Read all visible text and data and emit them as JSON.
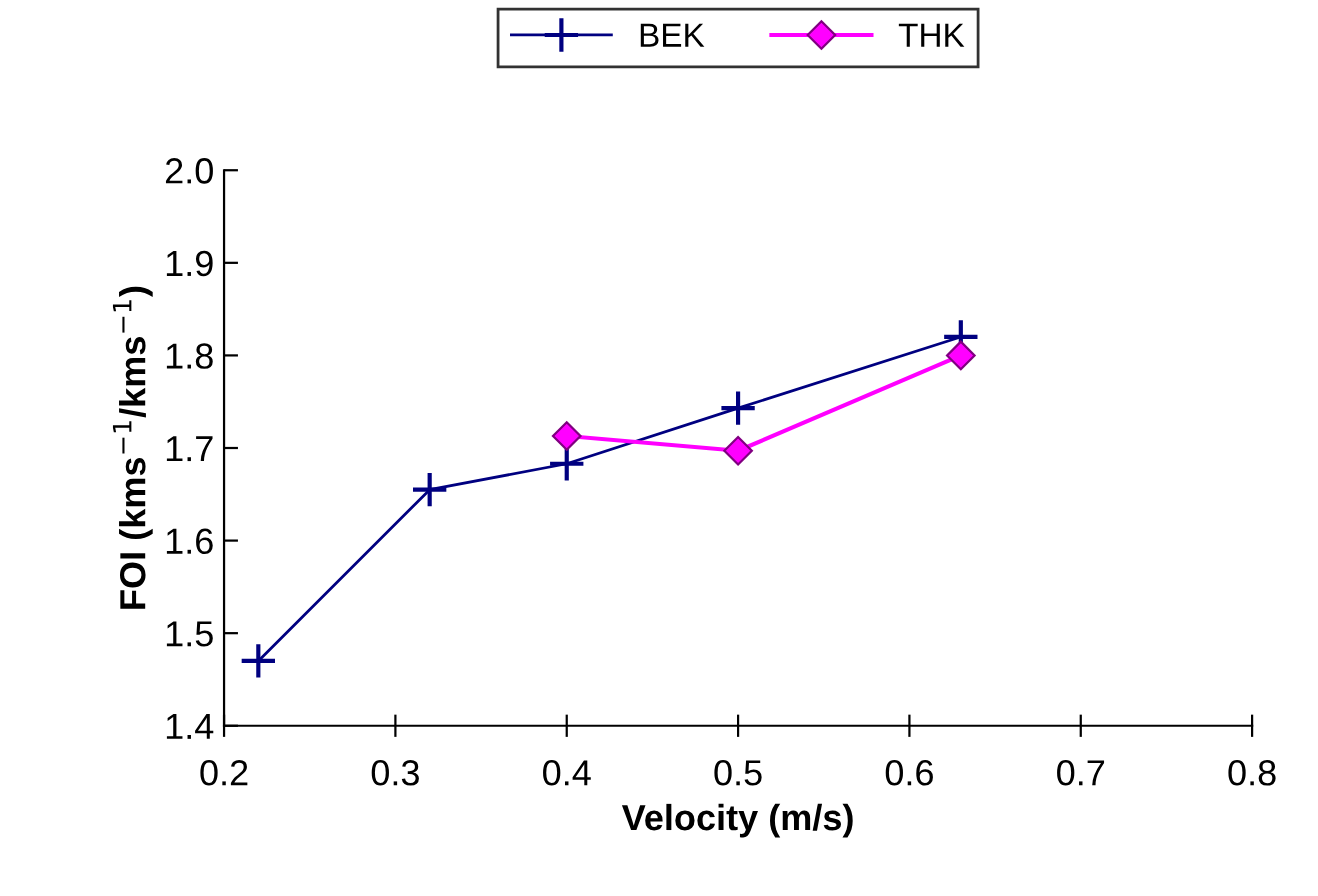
{
  "chart_data": {
    "type": "line",
    "xlabel": "Velocity (m/s)",
    "ylabel": "FOI (kms$^{−1}$/kms$^{−1}$)",
    "series": [
      {
        "name": "BEK",
        "color": "#000080",
        "marker": "cross",
        "x": [
          0.22,
          0.32,
          0.4,
          0.5,
          0.63
        ],
        "values": [
          1.47,
          1.655,
          1.683,
          1.743,
          1.82
        ]
      },
      {
        "name": "THK",
        "color": "#ff00ff",
        "marker": "diamond",
        "x": [
          0.4,
          0.5,
          0.63
        ],
        "values": [
          1.713,
          1.697,
          1.8
        ]
      }
    ],
    "xlim": [
      0.2,
      0.8
    ],
    "xticks": [
      {
        "value": 0.2,
        "label": "0.2"
      },
      {
        "value": 0.3,
        "label": "0.3"
      },
      {
        "value": 0.4,
        "label": "0.4"
      },
      {
        "value": 0.5,
        "label": "0.5"
      },
      {
        "value": 0.6,
        "label": "0.6"
      },
      {
        "value": 0.7,
        "label": "0.7"
      },
      {
        "value": 0.8,
        "label": "0.8"
      }
    ],
    "ylim": [
      1.4,
      2.0
    ],
    "yticks": [
      {
        "value": 1.4,
        "label": "1.4"
      },
      {
        "value": 1.5,
        "label": "1.5"
      },
      {
        "value": 1.6,
        "label": "1.6"
      },
      {
        "value": 1.7,
        "label": "1.7"
      },
      {
        "value": 1.8,
        "label": "1.8"
      },
      {
        "value": 1.9,
        "label": "1.9"
      },
      {
        "value": 2.0,
        "label": "2.0"
      }
    ],
    "grid": false,
    "legend": "top",
    "line_style": "solid"
  }
}
